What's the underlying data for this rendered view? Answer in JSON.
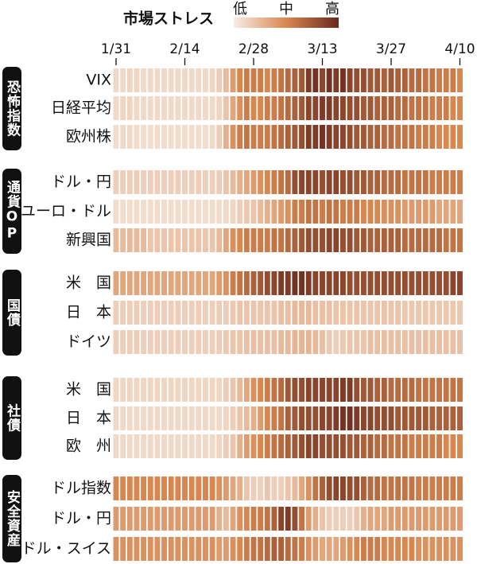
{
  "chart_data": {
    "type": "heatmap",
    "title": "市場ストレス",
    "legend_labels": [
      "低",
      "中",
      "高"
    ],
    "colors": [
      "#f7ede5",
      "#d8874f",
      "#6a281d"
    ],
    "clim": [
      0,
      100
    ],
    "x": [
      "1/31",
      null,
      null,
      null,
      null,
      null,
      null,
      null,
      null,
      null,
      "2/14",
      null,
      null,
      null,
      null,
      null,
      null,
      null,
      null,
      null,
      "2/28",
      null,
      null,
      null,
      null,
      null,
      null,
      null,
      null,
      null,
      "3/13",
      null,
      null,
      null,
      null,
      null,
      null,
      null,
      null,
      null,
      "3/27",
      null,
      null,
      null,
      null,
      null,
      null,
      null,
      null,
      null,
      "4/10"
    ],
    "groups": [
      {
        "label": "恐怖指数",
        "rows": [
          {
            "label": "VIX",
            "values": [
              10,
              10,
              12,
              12,
              10,
              10,
              10,
              10,
              10,
              10,
              10,
              10,
              10,
              10,
              12,
              15,
              25,
              40,
              50,
              55,
              55,
              55,
              50,
              55,
              60,
              65,
              70,
              75,
              90,
              95,
              85,
              95,
              90,
              95,
              85,
              80,
              80,
              75,
              75,
              70,
              75,
              70,
              70,
              65,
              65,
              60,
              60,
              55,
              55,
              55,
              50
            ]
          },
          {
            "label": "日経平均",
            "values": [
              10,
              12,
              12,
              10,
              10,
              10,
              10,
              10,
              10,
              10,
              10,
              10,
              10,
              10,
              10,
              12,
              20,
              35,
              45,
              55,
              50,
              50,
              55,
              55,
              60,
              65,
              70,
              75,
              85,
              85,
              90,
              90,
              85,
              85,
              80,
              80,
              75,
              75,
              70,
              70,
              70,
              65,
              65,
              60,
              60,
              60,
              55,
              55,
              55,
              50,
              50
            ]
          },
          {
            "label": "欧州株",
            "values": [
              8,
              10,
              10,
              8,
              8,
              8,
              8,
              8,
              8,
              8,
              8,
              8,
              8,
              8,
              10,
              15,
              30,
              45,
              55,
              60,
              55,
              55,
              55,
              60,
              65,
              70,
              75,
              80,
              90,
              90,
              95,
              90,
              85,
              85,
              80,
              75,
              75,
              70,
              70,
              65,
              65,
              60,
              60,
              60,
              55,
              55,
              55,
              50,
              50,
              50,
              50
            ]
          }
        ]
      },
      {
        "label": "通貨OP",
        "rows": [
          {
            "label": "ドル・円",
            "values": [
              15,
              15,
              15,
              15,
              15,
              15,
              15,
              15,
              15,
              15,
              15,
              15,
              15,
              15,
              15,
              15,
              20,
              25,
              30,
              35,
              40,
              45,
              50,
              55,
              60,
              65,
              80,
              85,
              85,
              85,
              80,
              85,
              85,
              80,
              80,
              75,
              75,
              70,
              70,
              65,
              65,
              65,
              60,
              60,
              60,
              60,
              55,
              55,
              55,
              55,
              55
            ]
          },
          {
            "label": "ユーロ・ドル",
            "values": [
              8,
              8,
              8,
              8,
              8,
              8,
              8,
              8,
              8,
              8,
              8,
              8,
              8,
              8,
              8,
              8,
              10,
              12,
              15,
              18,
              20,
              25,
              30,
              35,
              40,
              45,
              55,
              55,
              60,
              60,
              55,
              60,
              60,
              55,
              55,
              55,
              50,
              50,
              50,
              45,
              45,
              45,
              40,
              40,
              40,
              40,
              40,
              35,
              35,
              35,
              35
            ]
          },
          {
            "label": "新興国",
            "values": [
              25,
              25,
              25,
              25,
              25,
              20,
              20,
              20,
              20,
              20,
              20,
              20,
              20,
              20,
              20,
              25,
              35,
              45,
              50,
              55,
              55,
              55,
              55,
              60,
              60,
              65,
              70,
              75,
              80,
              80,
              80,
              85,
              85,
              80,
              80,
              75,
              75,
              70,
              70,
              70,
              70,
              70,
              65,
              65,
              65,
              65,
              65,
              65,
              60,
              60,
              60
            ]
          }
        ]
      },
      {
        "label": "国債",
        "rows": [
          {
            "label": "米　国",
            "values": [
              35,
              35,
              35,
              35,
              35,
              35,
              35,
              35,
              35,
              35,
              35,
              35,
              35,
              35,
              35,
              40,
              45,
              55,
              60,
              65,
              70,
              75,
              80,
              85,
              90,
              90,
              95,
              95,
              90,
              85,
              85,
              85,
              85,
              85,
              80,
              80,
              80,
              80,
              80,
              80,
              80,
              80,
              80,
              80,
              80,
              80,
              80,
              80,
              80,
              85,
              85
            ]
          },
          {
            "label": "日　本",
            "values": [
              15,
              15,
              15,
              15,
              15,
              15,
              15,
              15,
              15,
              15,
              15,
              15,
              15,
              15,
              15,
              15,
              15,
              18,
              20,
              20,
              20,
              20,
              20,
              20,
              22,
              22,
              25,
              25,
              25,
              22,
              22,
              22,
              20,
              20,
              20,
              20,
              20,
              20,
              20,
              20,
              20,
              20,
              18,
              18,
              18,
              18,
              18,
              18,
              18,
              18,
              18
            ]
          },
          {
            "label": "ドイツ",
            "values": [
              15,
              15,
              15,
              15,
              15,
              15,
              15,
              15,
              15,
              15,
              15,
              15,
              15,
              15,
              15,
              15,
              18,
              20,
              20,
              22,
              22,
              22,
              22,
              22,
              25,
              25,
              28,
              28,
              28,
              25,
              22,
              18,
              15,
              18,
              20,
              20,
              20,
              22,
              22,
              22,
              22,
              22,
              22,
              22,
              22,
              22,
              22,
              22,
              22,
              22,
              22
            ]
          }
        ]
      },
      {
        "label": "社債",
        "rows": [
          {
            "label": "米　国",
            "values": [
              12,
              12,
              12,
              12,
              12,
              12,
              12,
              12,
              12,
              12,
              12,
              12,
              12,
              12,
              12,
              12,
              15,
              20,
              25,
              35,
              45,
              50,
              55,
              60,
              65,
              75,
              80,
              80,
              85,
              85,
              85,
              85,
              85,
              90,
              90,
              80,
              75,
              75,
              70,
              70,
              65,
              65,
              65,
              65,
              60,
              60,
              60,
              60,
              60,
              60,
              60
            ]
          },
          {
            "label": "日　本",
            "values": [
              10,
              10,
              10,
              10,
              10,
              10,
              10,
              10,
              10,
              10,
              10,
              10,
              10,
              10,
              10,
              10,
              12,
              15,
              20,
              25,
              30,
              40,
              50,
              55,
              60,
              70,
              75,
              80,
              80,
              80,
              85,
              85,
              90,
              95,
              95,
              90,
              85,
              85,
              80,
              80,
              80,
              75,
              75,
              75,
              75,
              75,
              70,
              70,
              70,
              70,
              70
            ]
          },
          {
            "label": "欧　州",
            "values": [
              10,
              10,
              10,
              10,
              10,
              10,
              10,
              10,
              10,
              10,
              10,
              10,
              10,
              10,
              10,
              12,
              15,
              20,
              30,
              40,
              45,
              50,
              55,
              60,
              65,
              70,
              75,
              80,
              85,
              85,
              80,
              80,
              80,
              80,
              75,
              75,
              70,
              70,
              65,
              65,
              60,
              60,
              60,
              55,
              55,
              55,
              55,
              55,
              50,
              50,
              50
            ]
          }
        ]
      },
      {
        "label": "安全資産",
        "rows": [
          {
            "label": "ドル指数",
            "values": [
              50,
              50,
              50,
              50,
              50,
              50,
              50,
              50,
              50,
              50,
              50,
              50,
              50,
              50,
              50,
              45,
              40,
              35,
              30,
              20,
              15,
              15,
              20,
              15,
              15,
              20,
              25,
              35,
              45,
              60,
              70,
              80,
              85,
              85,
              80,
              80,
              70,
              65,
              65,
              60,
              60,
              60,
              60,
              60,
              55,
              55,
              55,
              55,
              55,
              55,
              55
            ]
          },
          {
            "label": "ドル・円",
            "values": [
              40,
              40,
              40,
              40,
              40,
              40,
              40,
              40,
              40,
              40,
              40,
              40,
              40,
              40,
              40,
              30,
              25,
              35,
              45,
              50,
              55,
              55,
              60,
              70,
              85,
              90,
              80,
              60,
              40,
              30,
              20,
              15,
              15,
              15,
              15,
              20,
              30,
              35,
              35,
              35,
              40,
              40,
              40,
              40,
              40,
              40,
              40,
              40,
              40,
              40,
              40
            ]
          },
          {
            "label": "ドル・スイス",
            "values": [
              45,
              45,
              45,
              45,
              45,
              45,
              45,
              45,
              45,
              45,
              45,
              45,
              45,
              45,
              45,
              40,
              40,
              45,
              50,
              55,
              60,
              60,
              65,
              70,
              70,
              65,
              60,
              55,
              45,
              40,
              35,
              35,
              35,
              40,
              45,
              50,
              55,
              55,
              55,
              50,
              50,
              50,
              50,
              50,
              45,
              45,
              45,
              45,
              45,
              45,
              45
            ]
          }
        ]
      }
    ]
  }
}
